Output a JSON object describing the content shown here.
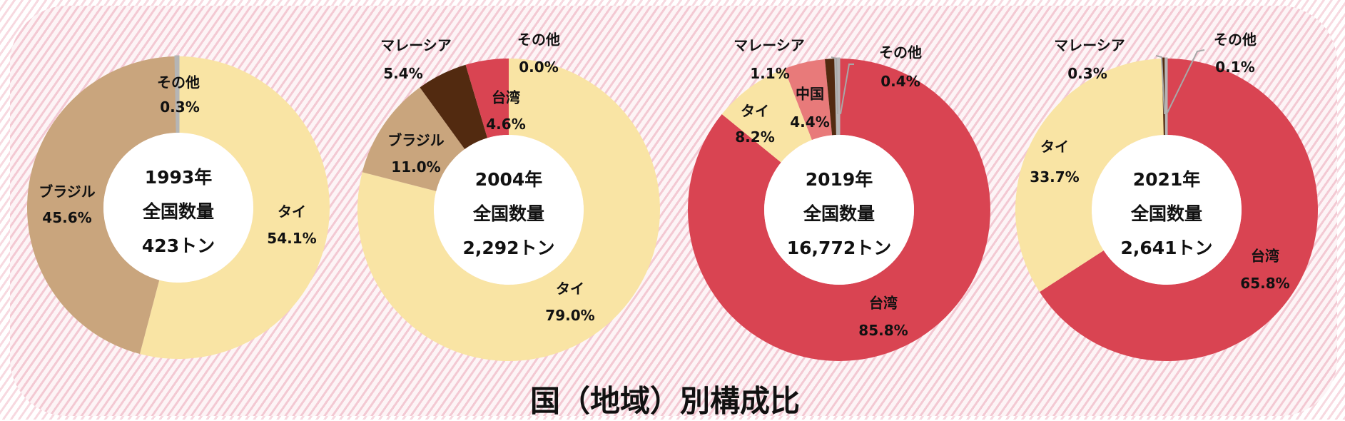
{
  "colors": {
    "台湾": "#d94452",
    "タイ": "#f9e4a4",
    "ブラジル": "#c9a57d",
    "マレーシア": "#522a10",
    "中国": "#e87a7a",
    "その他": "#b5b5b5"
  },
  "chart_data": [
    {
      "type": "pie",
      "variant": "donut",
      "center_text": [
        "1993年",
        "全国数量",
        "423トン"
      ],
      "slices": [
        {
          "name": "タイ",
          "value": 54.1,
          "label": "54.1%"
        },
        {
          "name": "ブラジル",
          "value": 45.6,
          "label": "45.6%"
        },
        {
          "name": "その他",
          "value": 0.3,
          "label": "0.3%"
        }
      ]
    },
    {
      "type": "pie",
      "variant": "donut",
      "center_text": [
        "2004年",
        "全国数量",
        "2,292トン"
      ],
      "slices": [
        {
          "name": "タイ",
          "value": 79.0,
          "label": "79.0%"
        },
        {
          "name": "ブラジル",
          "value": 11.0,
          "label": "11.0%"
        },
        {
          "name": "マレーシア",
          "value": 5.4,
          "label": "5.4%"
        },
        {
          "name": "台湾",
          "value": 4.6,
          "label": "4.6%"
        },
        {
          "name": "その他",
          "value": 0.0,
          "label": "0.0%"
        }
      ]
    },
    {
      "type": "pie",
      "variant": "donut",
      "center_text": [
        "2019年",
        "全国数量",
        "16,772トン"
      ],
      "slices": [
        {
          "name": "台湾",
          "value": 85.8,
          "label": "85.8%"
        },
        {
          "name": "タイ",
          "value": 8.2,
          "label": "8.2%"
        },
        {
          "name": "中国",
          "value": 4.4,
          "label": "4.4%"
        },
        {
          "name": "マレーシア",
          "value": 1.1,
          "label": "1.1%"
        },
        {
          "name": "その他",
          "value": 0.4,
          "label": "0.4%"
        }
      ]
    },
    {
      "type": "pie",
      "variant": "donut",
      "center_text": [
        "2021年",
        "全国数量",
        "2,641トン"
      ],
      "slices": [
        {
          "name": "台湾",
          "value": 65.8,
          "label": "65.8%"
        },
        {
          "name": "タイ",
          "value": 33.7,
          "label": "33.7%"
        },
        {
          "name": "マレーシア",
          "value": 0.3,
          "label": "0.3%"
        },
        {
          "name": "その他",
          "value": 0.1,
          "label": "0.1%"
        }
      ]
    }
  ],
  "title": "国（地域）別構成比"
}
